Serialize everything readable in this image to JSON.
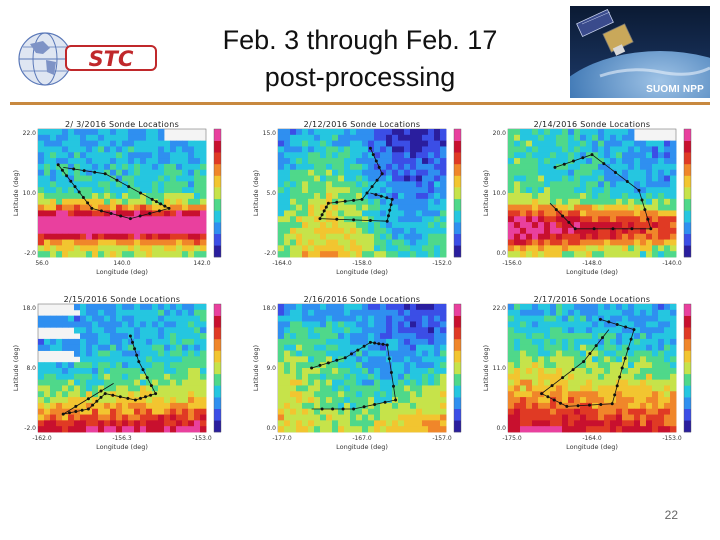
{
  "slide": {
    "title_line1": "Feb. 3 through  Feb. 17",
    "title_line2": "post-processing",
    "logo_text": "STC",
    "satellite_label": "SUOMI NPP",
    "page_number": "22"
  },
  "panels": [
    {
      "title": "2/ 3/2016 Sonde Locations",
      "xlabel": "Longitude (deg)",
      "ylabel": "Latitude (deg)",
      "xticks": [
        "56.0",
        "140.0",
        "142.0"
      ],
      "yticks": [
        "22.0",
        "10.0",
        "-2.0"
      ]
    },
    {
      "title": "2/12/2016 Sonde Locations",
      "xlabel": "Longitude (deg)",
      "ylabel": "Latitude (deg)",
      "xticks": [
        "-164.0",
        "-158.0",
        "-152.0"
      ],
      "yticks": [
        "15.0",
        "5.0",
        "-2.0"
      ]
    },
    {
      "title": "2/14/2016 Sonde Locations",
      "xlabel": "Longitude (deg)",
      "ylabel": "Latitude (deg)",
      "xticks": [
        "-156.0",
        "-148.0",
        "-140.0"
      ],
      "yticks": [
        "20.0",
        "10.0",
        "0.0"
      ]
    },
    {
      "title": "2/15/2016 Sonde Locations",
      "xlabel": "Longitude (deg)",
      "ylabel": "Latitude (deg)",
      "xticks": [
        "-162.0",
        "-156.3",
        "-153.0"
      ],
      "yticks": [
        "18.0",
        "8.0",
        "-2.0"
      ]
    },
    {
      "title": "2/16/2016 Sonde Locations",
      "xlabel": "Longitude (deg)",
      "ylabel": "Latitude (deg)",
      "xticks": [
        "-177.0",
        "-167.0",
        "-157.0"
      ],
      "yticks": [
        "18.0",
        "9.0",
        "0.0"
      ]
    },
    {
      "title": "2/17/2016 Sonde Locations",
      "xlabel": "Longitude (deg)",
      "ylabel": "Latitude (deg)",
      "xticks": [
        "-175.0",
        "-164.0",
        "-153.0"
      ],
      "yticks": [
        "22.0",
        "11.0",
        "0.0"
      ]
    }
  ],
  "colors": {
    "rule": "#c8893f",
    "logo_red": "#c0282b",
    "globe_blue": "#5a78b8"
  }
}
